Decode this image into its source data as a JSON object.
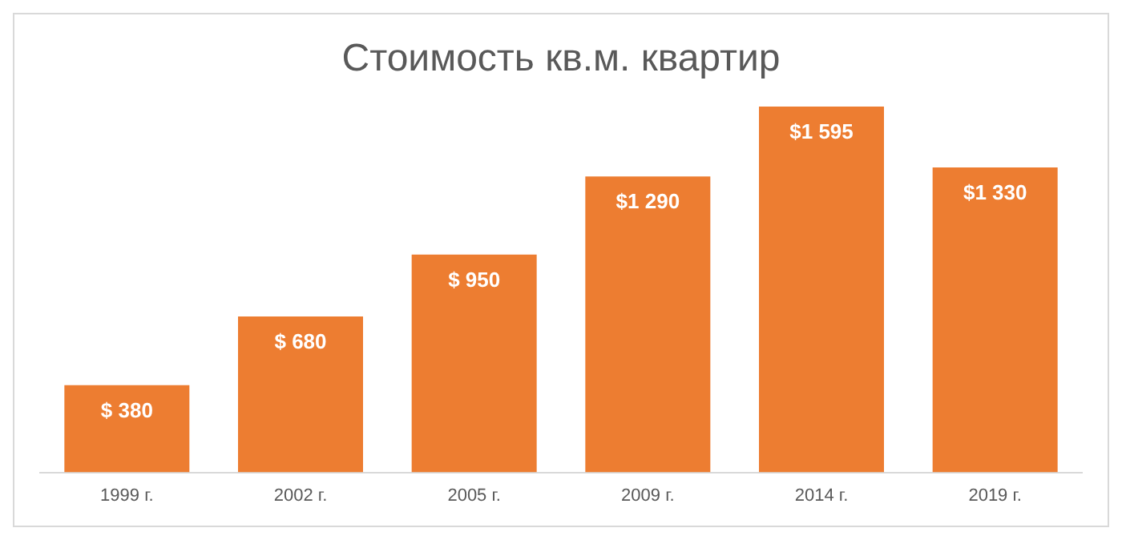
{
  "chart_data": {
    "type": "bar",
    "title": "Стоимость кв.м. квартир",
    "categories": [
      "1999 г.",
      "2002 г.",
      "2005 г.",
      "2009 г.",
      "2014 г.",
      "2019 г."
    ],
    "values": [
      380,
      680,
      950,
      1290,
      1595,
      1330
    ],
    "value_labels": [
      "$ 380",
      "$ 680",
      "$ 950",
      "$1 290",
      "$1 595",
      "$1 330"
    ],
    "color": "#ed7d31",
    "grid": false,
    "legend": false
  }
}
